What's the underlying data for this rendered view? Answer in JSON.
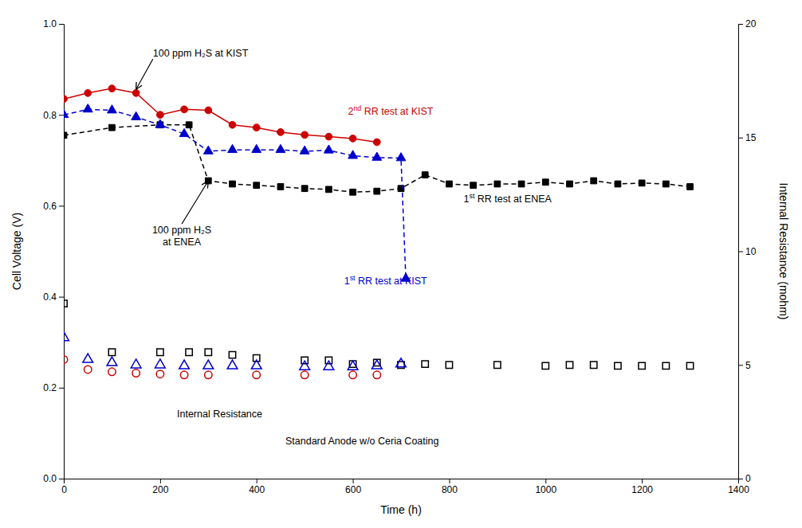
{
  "chart_data": {
    "type": "line",
    "xlabel": "Time (h)",
    "ylabel": "Cell Voltage (V)",
    "y2label": "Internal Resistance (mohm)",
    "xlim": [
      0,
      1400
    ],
    "ylim": [
      0.0,
      1.0
    ],
    "y2lim": [
      0,
      20
    ],
    "xticks": [
      0,
      200,
      400,
      600,
      800,
      1000,
      1200,
      1400
    ],
    "yticks": [
      {
        "value": 0.0,
        "label": "0.0"
      },
      0.2,
      0.4,
      0.6,
      0.8,
      {
        "value": 1.0,
        "label": "1.0"
      }
    ],
    "y2ticks": [
      0,
      5,
      10,
      15,
      20
    ],
    "grid": false,
    "series": [
      {
        "type": "line",
        "color": "#000000",
        "marker": "square",
        "line_style": "dashed",
        "x": [
          0,
          100,
          200,
          260,
          300,
          350,
          400,
          450,
          500,
          550,
          600,
          650,
          700,
          750,
          800,
          850,
          900,
          950,
          1000,
          1050,
          1100,
          1150,
          1200,
          1250,
          1300
        ],
        "values": [
          0.755,
          0.772,
          0.778,
          0.778,
          0.655,
          0.648,
          0.645,
          0.642,
          0.638,
          0.636,
          0.63,
          0.632,
          0.638,
          0.668,
          0.648,
          0.645,
          0.648,
          0.648,
          0.652,
          0.648,
          0.655,
          0.648,
          0.65,
          0.648,
          0.642
        ]
      },
      {
        "type": "line",
        "color": "#0000cc",
        "marker": "triangle",
        "line_style": "dashed",
        "x": [
          0,
          50,
          100,
          150,
          200,
          250,
          300,
          350,
          400,
          450,
          500,
          550,
          600,
          650,
          700,
          710
        ],
        "values": [
          0.8,
          0.812,
          0.81,
          0.795,
          0.778,
          0.758,
          0.72,
          0.723,
          0.723,
          0.723,
          0.72,
          0.722,
          0.71,
          0.706,
          0.705,
          0.44
        ]
      },
      {
        "type": "line",
        "color": "#cc0000",
        "marker": "circle",
        "line_style": "solid",
        "x": [
          0,
          50,
          100,
          150,
          200,
          250,
          300,
          350,
          400,
          450,
          500,
          550,
          600,
          650
        ],
        "values": [
          0.835,
          0.848,
          0.858,
          0.848,
          0.8,
          0.812,
          0.81,
          0.778,
          0.772,
          0.762,
          0.756,
          0.752,
          0.748,
          0.74
        ]
      },
      {
        "type": "scatter",
        "color": "#000000",
        "marker": "open-square",
        "x": [
          0,
          100,
          200,
          260,
          300,
          350,
          400,
          500,
          550,
          600,
          650,
          700,
          750,
          800,
          900,
          1000,
          1050,
          1100,
          1150,
          1200,
          1250,
          1300
        ],
        "values": [
          0.385,
          0.278,
          0.278,
          0.278,
          0.278,
          0.272,
          0.265,
          0.26,
          0.26,
          0.252,
          0.255,
          0.25,
          0.252,
          0.25,
          0.25,
          0.248,
          0.25,
          0.25,
          0.248,
          0.248,
          0.248,
          0.248
        ]
      },
      {
        "type": "scatter",
        "color": "#0000cc",
        "marker": "open-triangle",
        "x": [
          0,
          50,
          100,
          150,
          200,
          250,
          300,
          350,
          400,
          500,
          550,
          600,
          650,
          700
        ],
        "values": [
          0.31,
          0.262,
          0.255,
          0.25,
          0.25,
          0.248,
          0.248,
          0.248,
          0.248,
          0.246,
          0.246,
          0.246,
          0.248,
          0.252
        ]
      },
      {
        "type": "scatter",
        "color": "#cc0000",
        "marker": "open-circle",
        "x": [
          0,
          50,
          100,
          150,
          200,
          250,
          300,
          400,
          500,
          600,
          650
        ],
        "values": [
          0.262,
          0.24,
          0.235,
          0.232,
          0.23,
          0.228,
          0.228,
          0.228,
          0.228,
          0.228,
          0.228
        ]
      }
    ],
    "annotations": [
      {
        "text": "100 ppm H₂S at KIST",
        "x": 185,
        "y": 0.928,
        "arrow_to": [
          150,
          0.856
        ]
      },
      {
        "text": "100 ppm H₂S\nat ENEA",
        "x": 245,
        "y": 0.555,
        "arrow_to": [
          300,
          0.655
        ]
      },
      {
        "text": "Internal Resistance",
        "x": 235,
        "y": 0.135
      },
      {
        "text": "Standard Anode w/o Ceria Coating",
        "x": 460,
        "y": 0.075
      },
      {
        "text": "1st RR test at ENEA",
        "x": 830,
        "y": 0.608,
        "color": "#000000"
      },
      {
        "text": "1st RR test at KIST",
        "x": 582,
        "y": 0.428,
        "color": "#0000cc"
      },
      {
        "text": "2nd RR test at KIST",
        "x": 590,
        "y": 0.8,
        "color": "#cc0000"
      }
    ]
  }
}
